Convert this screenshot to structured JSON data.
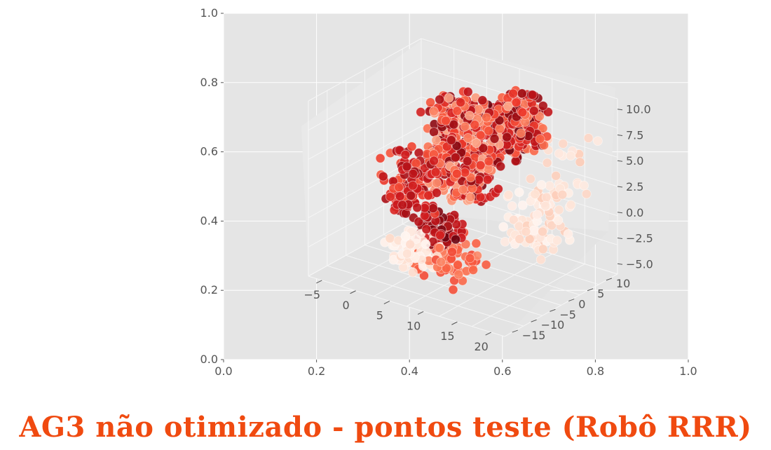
{
  "caption": "AG3 não otimizado - pontos teste (Robô RRR)",
  "colors": {
    "caption": "#f04a10",
    "axes_bg": "#e5e5e5",
    "pane_light": "#ededed",
    "pane_side": "#e6e6e6",
    "grid": "#ffffff",
    "tick_text": "#555555",
    "colormap": "Reds"
  },
  "chart_data": [
    {
      "type": "scatter",
      "role": "outer-2d-axes",
      "xlim": [
        0.0,
        1.0
      ],
      "ylim": [
        0.0,
        1.0
      ],
      "xticks": [
        "0.0",
        "0.2",
        "0.4",
        "0.6",
        "0.8",
        "1.0"
      ],
      "yticks": [
        "0.0",
        "0.2",
        "0.4",
        "0.6",
        "0.8",
        "1.0"
      ],
      "grid": true,
      "values": []
    },
    {
      "type": "scatter",
      "role": "3d-axes",
      "projection": "3d",
      "colormap": "Reds",
      "xticks": [
        "−5",
        "0",
        "5",
        "10",
        "15",
        "20"
      ],
      "yticks": [
        "−15",
        "−10",
        "−5",
        "0",
        "5",
        "10"
      ],
      "zticks": [
        "−5.0",
        "−2.5",
        "0.0",
        "2.5",
        "5.0",
        "7.5",
        "10.0"
      ],
      "xlim": [
        -7,
        22
      ],
      "ylim": [
        -17,
        13
      ],
      "zlim": [
        -6,
        11
      ],
      "clusters": [
        {
          "x": [
            2,
            10
          ],
          "y": [
            -4,
            6
          ],
          "z": [
            1,
            10
          ],
          "n": 420,
          "shade": [
            0.3,
            0.95
          ]
        },
        {
          "x": [
            10,
            15
          ],
          "y": [
            -2,
            8
          ],
          "z": [
            6,
            11
          ],
          "n": 200,
          "shade": [
            0.4,
            1.0
          ]
        },
        {
          "x": [
            -3,
            2
          ],
          "y": [
            -6,
            2
          ],
          "z": [
            -2,
            4
          ],
          "n": 110,
          "shade": [
            0.55,
            0.9
          ]
        },
        {
          "x": [
            0,
            6
          ],
          "y": [
            -10,
            -4
          ],
          "z": [
            -5,
            -2
          ],
          "n": 70,
          "shade": [
            0.0,
            0.15
          ]
        },
        {
          "x": [
            3,
            8
          ],
          "y": [
            -7,
            -2
          ],
          "z": [
            -3,
            0
          ],
          "n": 60,
          "shade": [
            0.7,
            1.0
          ]
        },
        {
          "x": [
            4,
            12
          ],
          "y": [
            -12,
            -3
          ],
          "z": [
            -5,
            -1
          ],
          "n": 80,
          "shade": [
            0.4,
            0.6
          ]
        },
        {
          "x": [
            12,
            18
          ],
          "y": [
            0,
            10
          ],
          "z": [
            -3,
            2
          ],
          "n": 90,
          "shade": [
            0.0,
            0.2
          ]
        },
        {
          "x": [
            14,
            20
          ],
          "y": [
            2,
            12
          ],
          "z": [
            2,
            8
          ],
          "n": 25,
          "shade": [
            0.05,
            0.2
          ]
        }
      ]
    }
  ]
}
